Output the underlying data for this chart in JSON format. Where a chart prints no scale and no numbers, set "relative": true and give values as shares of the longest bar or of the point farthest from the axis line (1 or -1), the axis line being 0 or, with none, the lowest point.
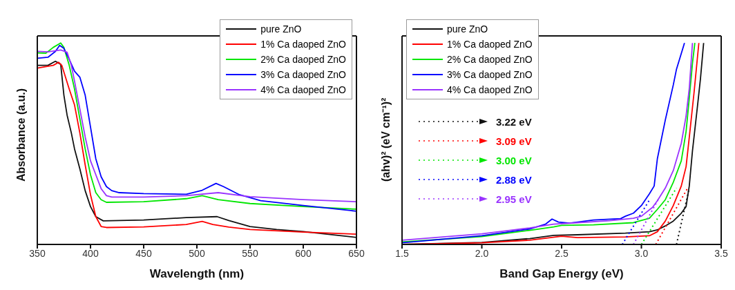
{
  "chart_data": [
    {
      "type": "line",
      "relative": true,
      "xlabel": "Wavelength (nm)",
      "ylabel": "Absorbance (a.u.)",
      "xlim": [
        350,
        650
      ],
      "xticks": [
        350,
        400,
        450,
        500,
        550,
        600,
        650
      ],
      "legend": "top right",
      "marker": "none",
      "series": [
        {
          "name": "pure ZnO",
          "color": "#111111",
          "x": [
            350,
            360,
            367,
            372,
            375,
            378,
            382,
            385,
            390,
            395,
            400,
            405,
            412,
            450,
            490,
            519,
            530,
            550,
            575,
            600,
            650
          ],
          "values": [
            0.889,
            0.889,
            0.909,
            0.894,
            0.741,
            0.642,
            0.553,
            0.474,
            0.375,
            0.267,
            0.188,
            0.138,
            0.117,
            0.121,
            0.133,
            0.138,
            0.119,
            0.089,
            0.074,
            0.064,
            0.035
          ]
        },
        {
          "name": "1% Ca daoped ZnO",
          "color": "#ff0000",
          "x": [
            350,
            365,
            370,
            373,
            380,
            385,
            390,
            395,
            400,
            405,
            410,
            415,
            450,
            490,
            505,
            515,
            530,
            550,
            600,
            650
          ],
          "values": [
            0.875,
            0.889,
            0.904,
            0.889,
            0.771,
            0.692,
            0.553,
            0.395,
            0.247,
            0.138,
            0.089,
            0.084,
            0.087,
            0.099,
            0.114,
            0.099,
            0.086,
            0.074,
            0.061,
            0.051
          ]
        },
        {
          "name": "2% Ca daoped ZnO",
          "color": "#00e600",
          "x": [
            350,
            358,
            365,
            372,
            375,
            380,
            385,
            390,
            395,
            400,
            405,
            410,
            415,
            450,
            490,
            505,
            520,
            550,
            600,
            650
          ],
          "values": [
            0.951,
            0.949,
            0.978,
            1.0,
            0.978,
            0.889,
            0.771,
            0.623,
            0.474,
            0.346,
            0.257,
            0.222,
            0.209,
            0.212,
            0.227,
            0.242,
            0.222,
            0.203,
            0.188,
            0.175
          ]
        },
        {
          "name": "3% Ca daoped ZnO",
          "color": "#0000ff",
          "x": [
            350,
            360,
            367,
            371,
            375,
            380,
            385,
            390,
            395,
            400,
            405,
            410,
            415,
            420,
            427,
            450,
            490,
            505,
            518,
            525,
            540,
            560,
            600,
            650
          ],
          "values": [
            0.924,
            0.929,
            0.958,
            0.988,
            0.973,
            0.919,
            0.86,
            0.83,
            0.741,
            0.583,
            0.425,
            0.336,
            0.287,
            0.267,
            0.257,
            0.252,
            0.249,
            0.269,
            0.303,
            0.287,
            0.247,
            0.217,
            0.193,
            0.165
          ]
        },
        {
          "name": "4% Ca daoped ZnO",
          "color": "#9933ff",
          "x": [
            350,
            360,
            372,
            378,
            382,
            385,
            390,
            395,
            400,
            405,
            410,
            415,
            420,
            450,
            490,
            520,
            550,
            600,
            650
          ],
          "values": [
            0.958,
            0.956,
            0.965,
            0.954,
            0.889,
            0.81,
            0.672,
            0.534,
            0.415,
            0.346,
            0.277,
            0.242,
            0.235,
            0.235,
            0.242,
            0.257,
            0.237,
            0.222,
            0.212
          ]
        }
      ]
    },
    {
      "type": "line",
      "relative": true,
      "xlabel": "Band Gap Energy (eV)",
      "ylabel": "(ahv)² (eV cm⁻¹)²",
      "xlim": [
        1.5,
        3.5
      ],
      "xticks": [
        1.5,
        {
          "value": 2,
          "label": "2.0"
        },
        2.5,
        {
          "value": 3,
          "label": "3.0"
        },
        3.5
      ],
      "legend": "top left",
      "marker": "none",
      "annotations": [
        "3.22 eV",
        "3.09 eV",
        "3.00 eV",
        "2.88 eV",
        "2.95 eV"
      ],
      "series": [
        {
          "name": "pure ZnO",
          "color": "#111111",
          "x": [
            1.5,
            2.0,
            2.3,
            2.45,
            2.6,
            2.9,
            3.05,
            3.1,
            3.15,
            3.2,
            3.25,
            3.28,
            3.3,
            3.32,
            3.35,
            3.37,
            3.39
          ],
          "values": [
            0,
            0.01,
            0.029,
            0.045,
            0.048,
            0.056,
            0.063,
            0.072,
            0.092,
            0.116,
            0.155,
            0.188,
            0.29,
            0.464,
            0.676,
            0.821,
            1.0
          ]
        },
        {
          "name": "1% Ca daoped ZnO",
          "color": "#ff0000",
          "x": [
            1.5,
            2.0,
            2.3,
            2.5,
            2.6,
            2.9,
            3.05,
            3.1,
            3.15,
            3.2,
            3.25,
            3.28,
            3.3,
            3.33,
            3.36
          ],
          "values": [
            0,
            0.008,
            0.021,
            0.041,
            0.034,
            0.037,
            0.043,
            0.063,
            0.116,
            0.193,
            0.29,
            0.386,
            0.531,
            0.754,
            1.0
          ]
        },
        {
          "name": "2% Ca daoped ZnO",
          "color": "#00e600",
          "x": [
            1.5,
            2.0,
            2.3,
            2.45,
            2.5,
            2.7,
            2.95,
            3.05,
            3.1,
            3.15,
            3.2,
            3.25,
            3.28,
            3.3,
            3.32,
            3.335
          ],
          "values": [
            0.012,
            0.039,
            0.07,
            0.087,
            0.095,
            0.097,
            0.108,
            0.13,
            0.174,
            0.222,
            0.309,
            0.415,
            0.56,
            0.725,
            0.899,
            1.0
          ]
        },
        {
          "name": "3% Ca daoped ZnO",
          "color": "#0000ff",
          "x": [
            1.5,
            2.0,
            2.3,
            2.4,
            2.44,
            2.48,
            2.55,
            2.7,
            2.87,
            2.9,
            2.95,
            3.0,
            3.05,
            3.08,
            3.1,
            3.15,
            3.2,
            3.22,
            3.27
          ],
          "values": [
            0.008,
            0.043,
            0.077,
            0.101,
            0.126,
            0.111,
            0.106,
            0.121,
            0.128,
            0.14,
            0.155,
            0.193,
            0.251,
            0.29,
            0.425,
            0.618,
            0.792,
            0.87,
            1.0
          ]
        },
        {
          "name": "4% Ca daoped ZnO",
          "color": "#9933ff",
          "x": [
            1.5,
            2.0,
            2.3,
            2.45,
            2.6,
            2.8,
            2.95,
            3.0,
            3.07,
            3.1,
            3.15,
            3.2,
            3.25,
            3.28,
            3.3,
            3.32
          ],
          "values": [
            0.021,
            0.053,
            0.082,
            0.101,
            0.108,
            0.118,
            0.13,
            0.14,
            0.184,
            0.217,
            0.28,
            0.367,
            0.502,
            0.638,
            0.773,
            1.0
          ]
        },
        {
          "type": "line",
          "line_style": "dotted",
          "color": "#111111",
          "x": [
            3.22,
            3.3
          ],
          "values": [
            0,
            0.28
          ]
        },
        {
          "type": "line",
          "line_style": "dotted",
          "color": "#ff0000",
          "x": [
            3.09,
            3.29
          ],
          "values": [
            0,
            0.28
          ]
        },
        {
          "type": "line",
          "line_style": "dotted",
          "color": "#00e600",
          "x": [
            3.0,
            3.22
          ],
          "values": [
            0,
            0.28
          ]
        },
        {
          "type": "line",
          "line_style": "dotted",
          "color": "#0000ff",
          "x": [
            2.88,
            3.05
          ],
          "values": [
            0,
            0.22
          ]
        },
        {
          "type": "line",
          "line_style": "dotted",
          "color": "#9933ff",
          "x": [
            2.95,
            3.11
          ],
          "values": [
            0,
            0.23
          ]
        }
      ]
    }
  ]
}
